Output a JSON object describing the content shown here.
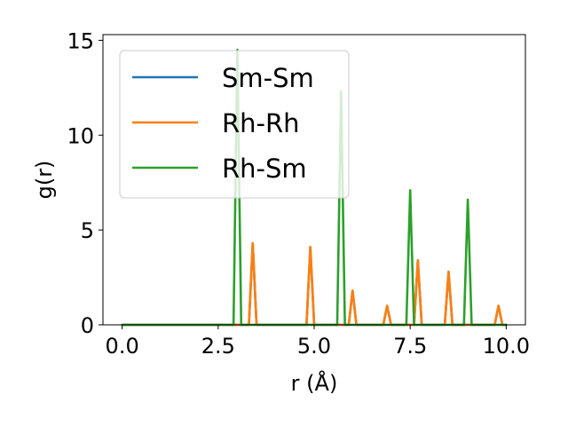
{
  "chart_data": {
    "type": "line",
    "xlabel": "r (Å)",
    "ylabel": "g(r)",
    "xlim": [
      -0.5,
      10.5
    ],
    "ylim": [
      0,
      15.3
    ],
    "grid": false,
    "legend_position": "top-left",
    "x_ticks": [
      {
        "value": 0,
        "label": "0.0"
      },
      {
        "value": 2.5,
        "label": "2.5"
      },
      {
        "value": 5,
        "label": "5.0"
      },
      {
        "value": 7.5,
        "label": "7.5"
      },
      {
        "value": 10,
        "label": "10.0"
      }
    ],
    "y_ticks": [
      {
        "value": 0,
        "label": "0"
      },
      {
        "value": 5,
        "label": "5"
      },
      {
        "value": 10,
        "label": "10"
      },
      {
        "value": 15,
        "label": "15"
      }
    ],
    "series": [
      {
        "name": "Sm-Sm",
        "color": "#1f77b4",
        "points": [
          [
            0,
            0
          ],
          [
            3.3,
            0
          ],
          [
            3.4,
            4.3
          ],
          [
            3.5,
            0
          ],
          [
            4.8,
            0
          ],
          [
            4.9,
            4.1
          ],
          [
            5.0,
            0
          ],
          [
            5.9,
            0
          ],
          [
            6.0,
            1.8
          ],
          [
            6.1,
            0
          ],
          [
            6.8,
            0
          ],
          [
            6.9,
            1.0
          ],
          [
            7.0,
            0
          ],
          [
            7.6,
            0
          ],
          [
            7.7,
            3.4
          ],
          [
            7.8,
            0
          ],
          [
            8.4,
            0
          ],
          [
            8.5,
            2.8
          ],
          [
            8.6,
            0
          ],
          [
            9.7,
            0
          ],
          [
            9.8,
            1.0
          ],
          [
            9.9,
            0
          ],
          [
            10.0,
            0
          ]
        ]
      },
      {
        "name": "Rh-Rh",
        "color": "#ff7f0e",
        "points": [
          [
            0,
            0
          ],
          [
            3.3,
            0
          ],
          [
            3.4,
            4.3
          ],
          [
            3.5,
            0
          ],
          [
            4.8,
            0
          ],
          [
            4.9,
            4.1
          ],
          [
            5.0,
            0
          ],
          [
            5.9,
            0
          ],
          [
            6.0,
            1.8
          ],
          [
            6.1,
            0
          ],
          [
            6.8,
            0
          ],
          [
            6.9,
            1.0
          ],
          [
            7.0,
            0
          ],
          [
            7.6,
            0
          ],
          [
            7.7,
            3.4
          ],
          [
            7.8,
            0
          ],
          [
            8.4,
            0
          ],
          [
            8.5,
            2.8
          ],
          [
            8.6,
            0
          ],
          [
            9.7,
            0
          ],
          [
            9.8,
            1.0
          ],
          [
            9.9,
            0
          ],
          [
            10.0,
            0
          ]
        ]
      },
      {
        "name": "Rh-Sm",
        "color": "#2ca02c",
        "points": [
          [
            0,
            0
          ],
          [
            2.9,
            0
          ],
          [
            3.0,
            14.5
          ],
          [
            3.1,
            0
          ],
          [
            5.6,
            0
          ],
          [
            5.7,
            12.3
          ],
          [
            5.8,
            0
          ],
          [
            7.4,
            0
          ],
          [
            7.5,
            7.1
          ],
          [
            7.6,
            0
          ],
          [
            8.9,
            0
          ],
          [
            9.0,
            6.6
          ],
          [
            9.1,
            0
          ],
          [
            10.0,
            0
          ]
        ]
      }
    ]
  }
}
